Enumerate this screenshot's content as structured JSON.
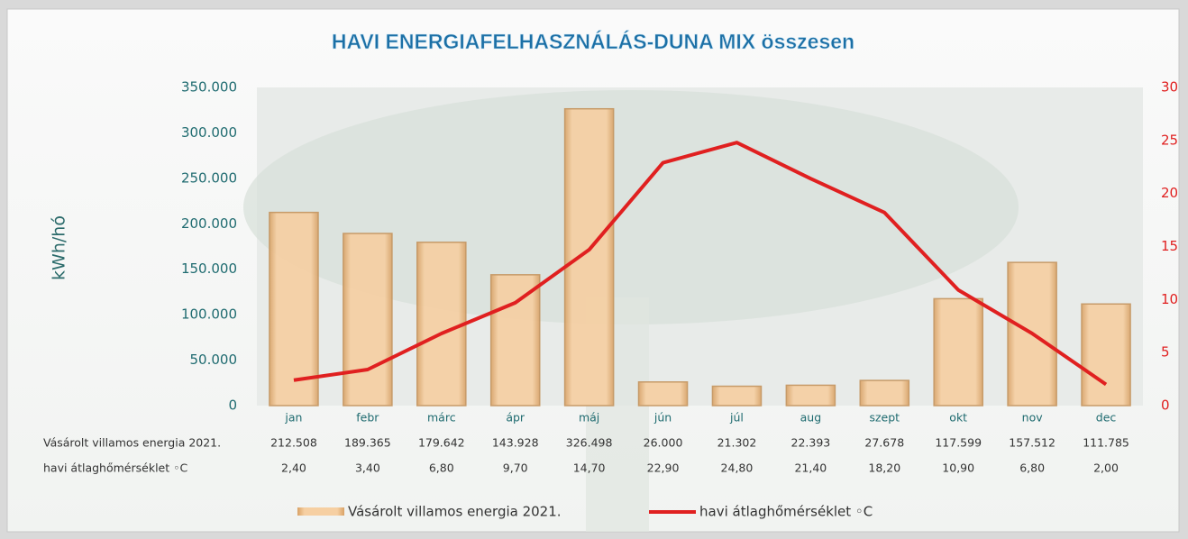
{
  "chart_data": {
    "type": "bar_line",
    "title": "HAVI ENERGIAFELHASZNÁLÁS-DUNA MIX összesen",
    "ylabel": "kWh/hó",
    "categories": [
      "jan",
      "febr",
      "márc",
      "ápr",
      "máj",
      "jún",
      "júl",
      "aug",
      "szept",
      "okt",
      "nov",
      "dec"
    ],
    "series": [
      {
        "name": "Vásárolt villamos energia 2021.",
        "type": "bar",
        "color": "#f2c596",
        "values": [
          212508,
          189365,
          179642,
          143928,
          326498,
          26000,
          21302,
          22393,
          27678,
          117599,
          157512,
          111785
        ],
        "value_labels": [
          "212.508",
          "189.365",
          "179.642",
          "143.928",
          "326.498",
          "26.000",
          "21.302",
          "22.393",
          "27.678",
          "117.599",
          "157.512",
          "111.785"
        ]
      },
      {
        "name": "havi átlaghőmérséklet ◦C",
        "type": "line",
        "axis": "y2",
        "color": "#e02020",
        "values": [
          2.4,
          3.4,
          6.8,
          9.7,
          14.7,
          22.9,
          24.8,
          21.4,
          18.2,
          10.9,
          6.8,
          2.0
        ],
        "value_labels": [
          "2,40",
          "3,40",
          "6,80",
          "9,70",
          "14,70",
          "22,90",
          "24,80",
          "21,40",
          "18,20",
          "10,90",
          "6,80",
          "2,00"
        ]
      }
    ],
    "ylim": [
      0,
      350000
    ],
    "yticks": [
      {
        "value": 0,
        "label": "0"
      },
      {
        "value": 50000,
        "label": "50.000"
      },
      {
        "value": 100000,
        "label": "100.000"
      },
      {
        "value": 150000,
        "label": "150.000"
      },
      {
        "value": 200000,
        "label": "200.000"
      },
      {
        "value": 250000,
        "label": "250.000"
      },
      {
        "value": 300000,
        "label": "300.000"
      },
      {
        "value": 350000,
        "label": "350.000"
      }
    ],
    "y2lim": [
      0,
      30
    ],
    "y2ticks": [
      0,
      5,
      10,
      15,
      20,
      25,
      30
    ]
  }
}
